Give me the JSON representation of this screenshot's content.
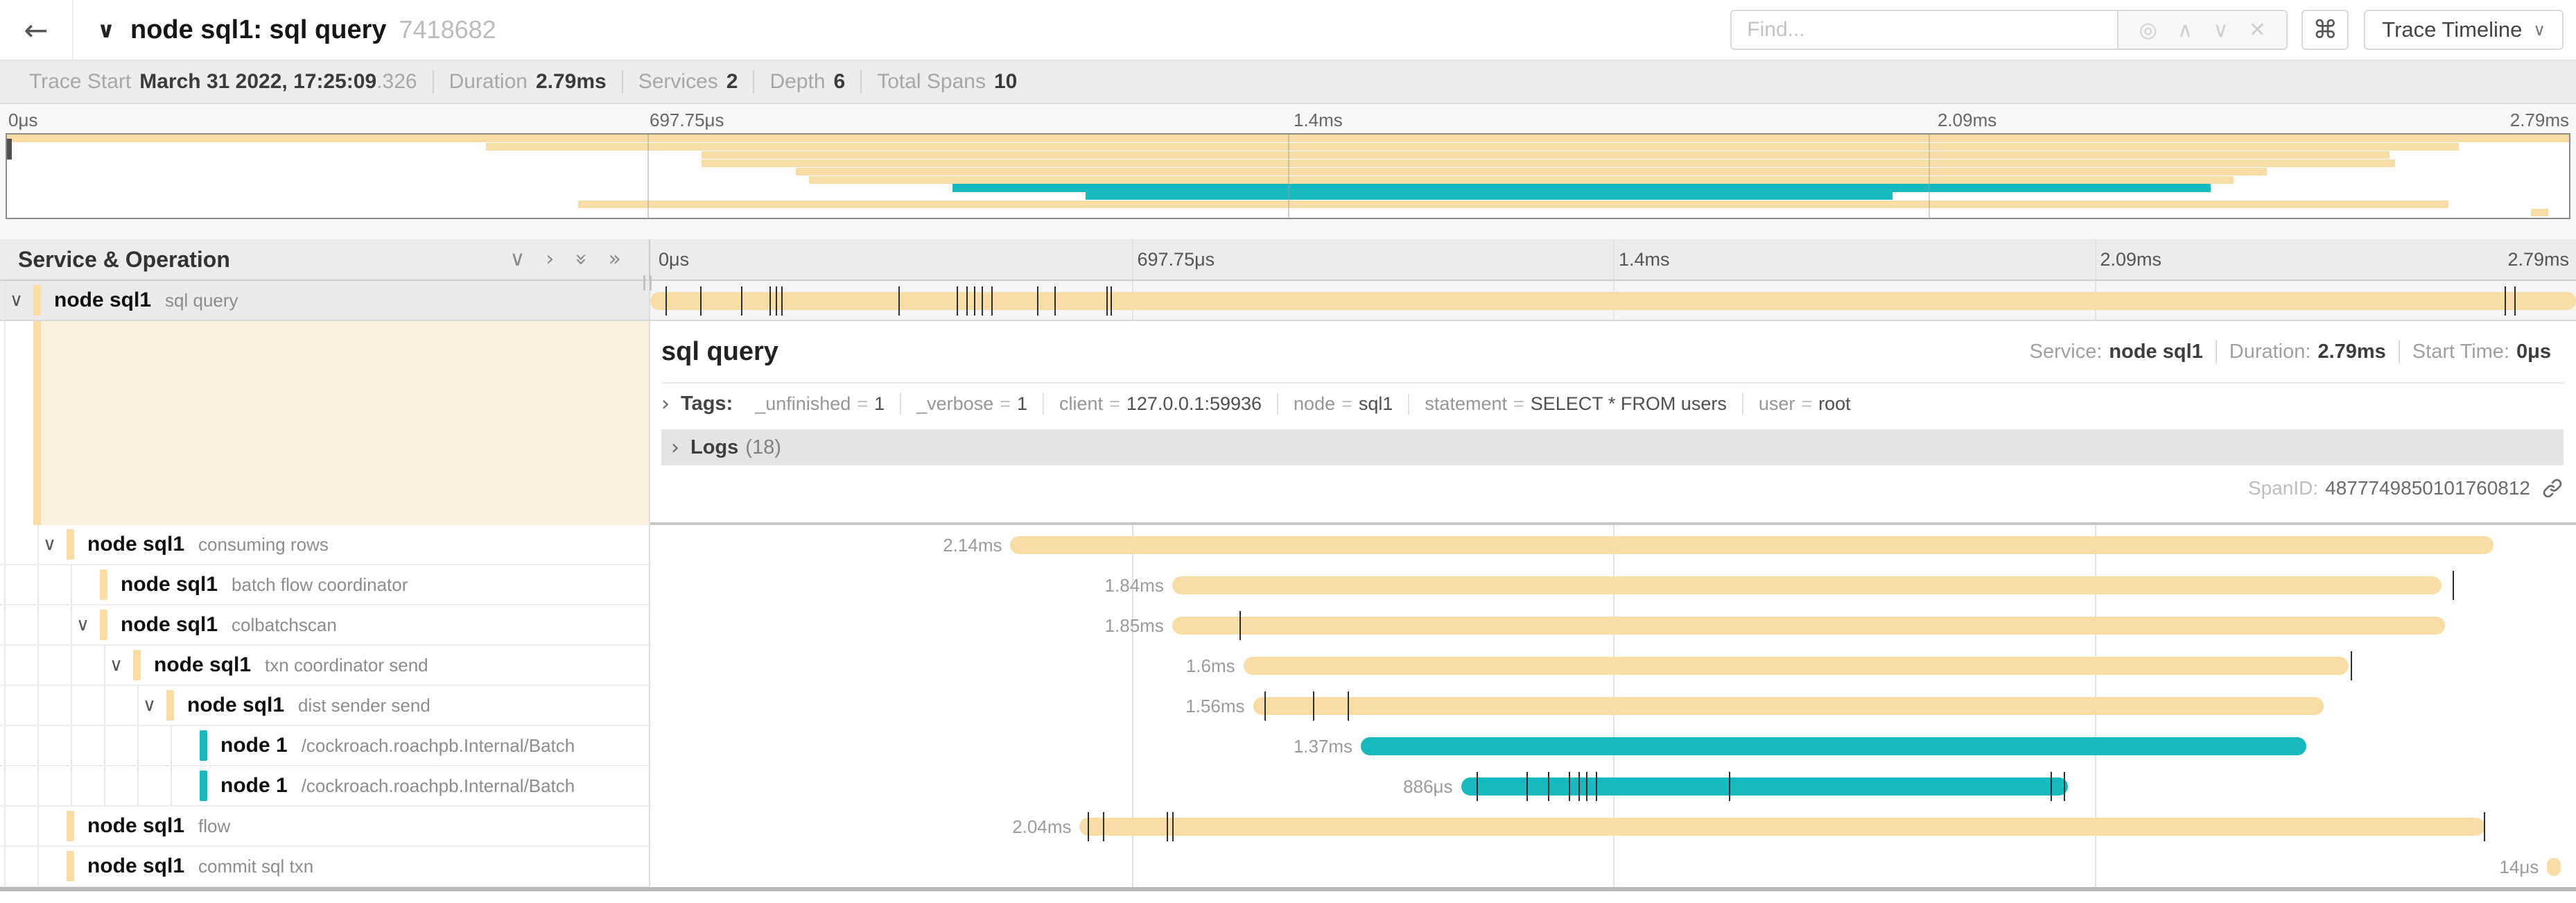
{
  "header": {
    "back": "←",
    "collapse_chevron": "∨",
    "title": "node sql1: sql query",
    "trace_id": "7418682",
    "find_placeholder": "Find...",
    "find_icons": {
      "locate": "◎",
      "prev": "∧",
      "next": "∨",
      "clear": "✕"
    },
    "shortcut_glyph": "⌘",
    "view_button": "Trace Timeline",
    "view_chevron": "∨"
  },
  "summary": {
    "trace_start_label": "Trace Start",
    "trace_start_value": "March 31 2022, 17:25:09",
    "trace_start_fraction": ".326",
    "duration_label": "Duration",
    "duration_value": "2.79ms",
    "services_label": "Services",
    "services_value": "2",
    "depth_label": "Depth",
    "depth_value": "6",
    "total_spans_label": "Total Spans",
    "total_spans_value": "10"
  },
  "timeline": {
    "ticks": [
      {
        "label": "0μs",
        "pos": 0
      },
      {
        "label": "697.75μs",
        "pos": 25
      },
      {
        "label": "1.4ms",
        "pos": 50
      },
      {
        "label": "2.09ms",
        "pos": 75
      },
      {
        "label": "2.79ms",
        "pos": 100
      }
    ]
  },
  "table": {
    "header": "Service & Operation",
    "icons": {
      "collapse_one": "∨",
      "expand_one": "›",
      "collapse_all": "»",
      "expand_all": "»"
    }
  },
  "colors": {
    "tan": "#F8DDA6",
    "teal": "#17B8BE"
  },
  "spans": [
    {
      "service": "node sql1",
      "operation": "sql query",
      "depth": 0,
      "color": "tan",
      "start": 0,
      "end": 100,
      "duration_label": "",
      "chevron": true,
      "selected": true,
      "ticks": [
        0.8,
        2.6,
        4.7,
        6.2,
        6.5,
        6.8,
        12.9,
        15.9,
        16.4,
        16.8,
        17.2,
        17.7,
        20.1,
        21.0,
        23.7,
        23.9,
        96.3,
        96.8
      ]
    },
    {
      "service": "node sql1",
      "operation": "consuming rows",
      "depth": 1,
      "color": "tan",
      "start": 18.7,
      "end": 95.7,
      "duration_label": "2.14ms",
      "chevron": true,
      "ticks": []
    },
    {
      "service": "node sql1",
      "operation": "batch flow coordinator",
      "depth": 2,
      "color": "tan",
      "start": 27.1,
      "end": 93.0,
      "duration_label": "1.84ms",
      "chevron": false,
      "ticks": [
        93.6
      ]
    },
    {
      "service": "node sql1",
      "operation": "colbatchscan",
      "depth": 2,
      "color": "tan",
      "start": 27.1,
      "end": 93.2,
      "duration_label": "1.85ms",
      "chevron": true,
      "ticks": [
        30.6
      ]
    },
    {
      "service": "node sql1",
      "operation": "txn coordinator send",
      "depth": 3,
      "color": "tan",
      "start": 30.8,
      "end": 88.2,
      "duration_label": "1.6ms",
      "chevron": true,
      "ticks": [
        88.3
      ]
    },
    {
      "service": "node sql1",
      "operation": "dist sender send",
      "depth": 4,
      "color": "tan",
      "start": 31.3,
      "end": 86.9,
      "duration_label": "1.56ms",
      "chevron": true,
      "ticks": [
        31.9,
        34.4,
        36.2
      ]
    },
    {
      "service": "node 1",
      "operation": "/cockroach.roachpb.Internal/Batch",
      "depth": 5,
      "color": "teal",
      "start": 36.9,
      "end": 86.0,
      "duration_label": "1.37ms",
      "chevron": false,
      "ticks": []
    },
    {
      "service": "node 1",
      "operation": "/cockroach.roachpb.Internal/Batch",
      "depth": 5,
      "color": "teal",
      "start": 42.1,
      "end": 73.6,
      "duration_label": "886μs",
      "chevron": false,
      "ticks": [
        42.9,
        45.5,
        46.6,
        47.7,
        48.2,
        48.6,
        49.1,
        56.0,
        72.7,
        73.4
      ]
    },
    {
      "service": "node sql1",
      "operation": "flow",
      "depth": 1,
      "color": "tan",
      "start": 22.3,
      "end": 95.3,
      "duration_label": "2.04ms",
      "chevron": false,
      "ticks": [
        22.7,
        23.5,
        26.8,
        27.1,
        95.2
      ]
    },
    {
      "service": "node sql1",
      "operation": "commit sql txn",
      "depth": 1,
      "color": "tan",
      "start": 98.5,
      "end": 99.2,
      "duration_label": "14μs",
      "chevron": false,
      "ticks": []
    }
  ],
  "detail": {
    "title": "sql query",
    "service_label": "Service:",
    "service_value": "node sql1",
    "duration_label": "Duration:",
    "duration_value": "2.79ms",
    "start_label": "Start Time:",
    "start_value": "0μs",
    "tags_label": "Tags:",
    "tags": [
      {
        "key": "_unfinished",
        "value": "1"
      },
      {
        "key": "_verbose",
        "value": "1"
      },
      {
        "key": "client",
        "value": "127.0.0.1:59936"
      },
      {
        "key": "node",
        "value": "sql1"
      },
      {
        "key": "statement",
        "value": "SELECT * FROM users"
      },
      {
        "key": "user",
        "value": "root"
      }
    ],
    "logs_label": "Logs",
    "logs_count": "(18)",
    "span_id_label": "SpanID:",
    "span_id_value": "4877749850101760812"
  }
}
